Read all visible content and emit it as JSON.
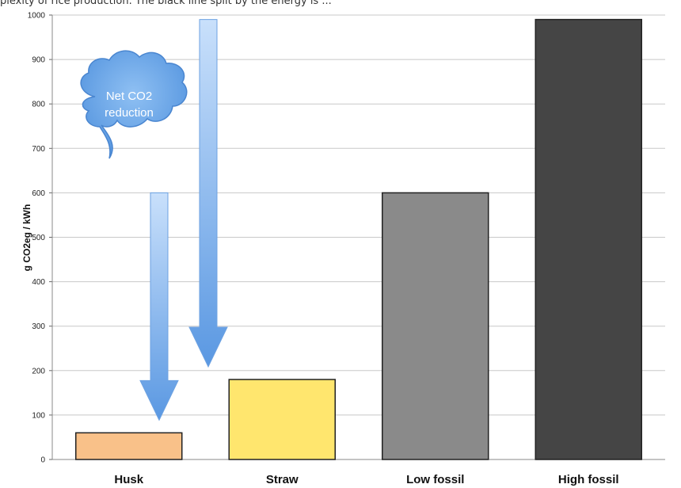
{
  "header": {
    "text": "plexity of rice production. The black line split by the energy is ..."
  },
  "chart_data": {
    "type": "bar",
    "title": "",
    "xlabel": "",
    "ylabel": "g CO2eg / kWh",
    "ylim": [
      0,
      1000
    ],
    "yticks": [
      0,
      100,
      200,
      300,
      400,
      500,
      600,
      700,
      800,
      900,
      1000
    ],
    "grid": true,
    "categories": [
      "Husk",
      "Straw",
      "Low fossil",
      "High fossil"
    ],
    "values": [
      60,
      180,
      600,
      990
    ],
    "colors": {
      "bars": [
        "#f9c189",
        "#ffe66e",
        "#8a8a8a",
        "#454545"
      ],
      "arrow": "#7fb3ec",
      "cloud": "#6aa6e9"
    },
    "annotations": [
      {
        "type": "cloud",
        "text_lines": [
          "Net CO2",
          "reduction"
        ]
      },
      {
        "type": "arrow",
        "from": 600,
        "to": 60,
        "category": "Husk"
      },
      {
        "type": "arrow",
        "from": 990,
        "to": 180,
        "category": "Straw"
      }
    ]
  }
}
